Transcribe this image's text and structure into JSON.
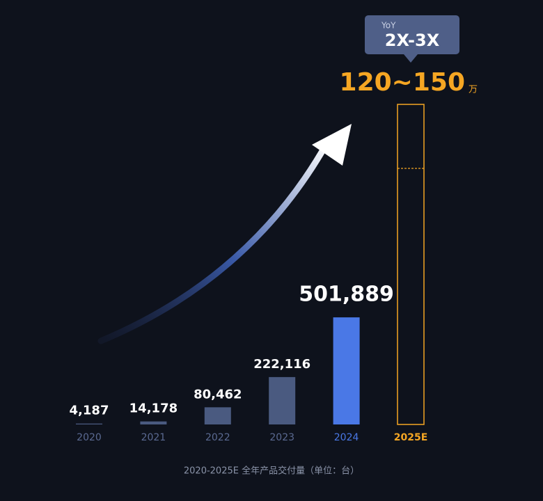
{
  "chart_data": {
    "type": "bar",
    "categories": [
      "2020",
      "2021",
      "2022",
      "2023",
      "2024",
      "2025E"
    ],
    "values": [
      4187,
      14178,
      80462,
      222116,
      501889,
      null
    ],
    "value_labels": [
      "4,187",
      "14,178",
      "80,462",
      "222,116",
      "501,889",
      null
    ],
    "colors": [
      "#4a5a80",
      "#4a5a80",
      "#4a5a80",
      "#4a5a80",
      "#4a78e6",
      "#f5a623"
    ],
    "label_colors": [
      "#5b6a92",
      "#5b6a92",
      "#5b6a92",
      "#5b6a92",
      "#4a78e6",
      "#f5a623"
    ],
    "estimate": {
      "low": 1200000,
      "high": 1500000,
      "label": "120~150",
      "unit": "万"
    },
    "callout": {
      "title": "YoY",
      "text": "2X-3X"
    },
    "ylim": [
      0,
      1500000
    ],
    "footnote": "2020-2025E 全年产品交付量（单位：台）"
  }
}
